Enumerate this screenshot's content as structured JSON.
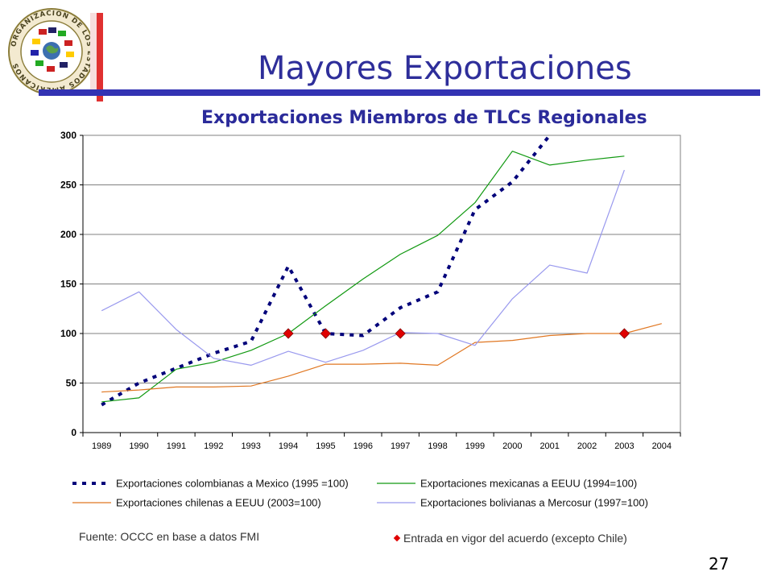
{
  "slide": {
    "title": "Mayores Exportaciones",
    "page_number": "27",
    "logo": {
      "name": "OEA seal",
      "text": "ORGANIZACION DE LOS ESTADOS AMERICANOS"
    },
    "source_note": "Fuente: OCCC en base a datos FMI",
    "marker_note": "Entrada en vigor del acuerdo (excepto Chile)",
    "colors": {
      "title": "#2e2e9a",
      "title_bar": "#3333b3",
      "accent_bar": "#e03030"
    }
  },
  "chart_data": {
    "type": "line",
    "title": "Exportaciones Miembros de TLCs Regionales",
    "xlabel": "",
    "ylabel": "",
    "categories": [
      "1989",
      "1990",
      "1991",
      "1992",
      "1993",
      "1994",
      "1995",
      "1996",
      "1997",
      "1998",
      "1999",
      "2000",
      "2001",
      "2002",
      "2003",
      "2004"
    ],
    "ylim": [
      0,
      300
    ],
    "yticks": [
      0,
      50,
      100,
      150,
      200,
      250,
      300
    ],
    "grid": true,
    "legend_position": "bottom",
    "series": [
      {
        "name": "Exportaciones colombianas a Mexico (1995 =100)",
        "color": "#00007a",
        "style": "dotted",
        "values": [
          28,
          50,
          65,
          80,
          92,
          168,
          100,
          98,
          126,
          142,
          225,
          253,
          302,
          null,
          null,
          null
        ]
      },
      {
        "name": "Exportaciones mexicanas a EEUU (1994=100)",
        "color": "#119911",
        "style": "solid",
        "values": [
          31,
          35,
          64,
          71,
          83,
          100,
          128,
          155,
          180,
          199,
          232,
          284,
          270,
          275,
          279,
          null
        ]
      },
      {
        "name": "Exportaciones chilenas a EEUU (2003=100)",
        "color": "#e07722",
        "style": "solid",
        "values": [
          41,
          43,
          46,
          46,
          47,
          57,
          69,
          69,
          70,
          68,
          91,
          93,
          98,
          100,
          100,
          110
        ]
      },
      {
        "name": "Exportaciones bolivianas a Mercosur (1997=100)",
        "color": "#9999ee",
        "style": "solid",
        "values": [
          123,
          142,
          104,
          75,
          68,
          82,
          71,
          83,
          101,
          100,
          88,
          135,
          169,
          161,
          265,
          null
        ]
      }
    ],
    "markers": {
      "label": "Entrada en vigor del acuerdo (excepto Chile)",
      "color": "#e00000",
      "shape": "diamond",
      "points": [
        {
          "x": "1994",
          "y": 100
        },
        {
          "x": "1995",
          "y": 100
        },
        {
          "x": "1997",
          "y": 100
        },
        {
          "x": "2003",
          "y": 100
        }
      ]
    }
  }
}
